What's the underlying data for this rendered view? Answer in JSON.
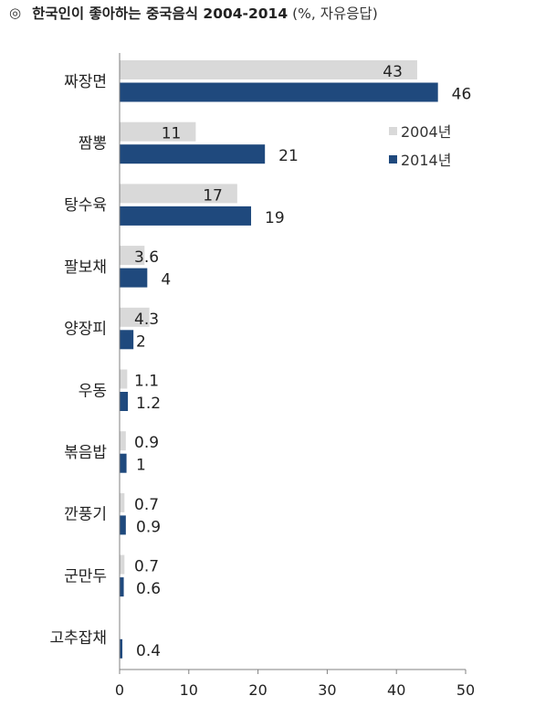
{
  "header": {
    "mark": "◎",
    "title": "한국인이 좋아하는 중국음식 2004-2014",
    "subtitle": "(%, 자유응답)"
  },
  "colors": {
    "series_2004": "#d9d9d9",
    "series_2014": "#1f497d",
    "axis": "#808080"
  },
  "chart_data": {
    "type": "bar",
    "orientation": "horizontal",
    "title": "한국인이 좋아하는 중국음식 2004-2014",
    "subtitle": "(%, 자유응답)",
    "categories": [
      "짜장면",
      "짬뽕",
      "탕수육",
      "팔보채",
      "양장피",
      "우동",
      "볶음밥",
      "깐풍기",
      "군만두",
      "고추잡채"
    ],
    "series": [
      {
        "name": "2004년",
        "values": [
          43,
          11,
          17,
          3.6,
          4.3,
          1.1,
          0.9,
          0.7,
          0.7,
          null
        ],
        "labels": [
          "43",
          "11",
          "17",
          "3.6",
          "4.3",
          "1.1",
          "0.9",
          "0.7",
          "0.7",
          ""
        ]
      },
      {
        "name": "2014년",
        "values": [
          46,
          21,
          19,
          4,
          2,
          1.2,
          1,
          0.9,
          0.6,
          0.4
        ],
        "labels": [
          "46",
          "21",
          "19",
          "4",
          "2",
          "1.2",
          "1",
          "0.9",
          "0.6",
          "0.4"
        ]
      }
    ],
    "xlim": [
      0,
      50
    ],
    "x_ticks": [
      "0",
      "10",
      "20",
      "30",
      "40",
      "50"
    ],
    "legend_position": "right",
    "grid": false
  }
}
